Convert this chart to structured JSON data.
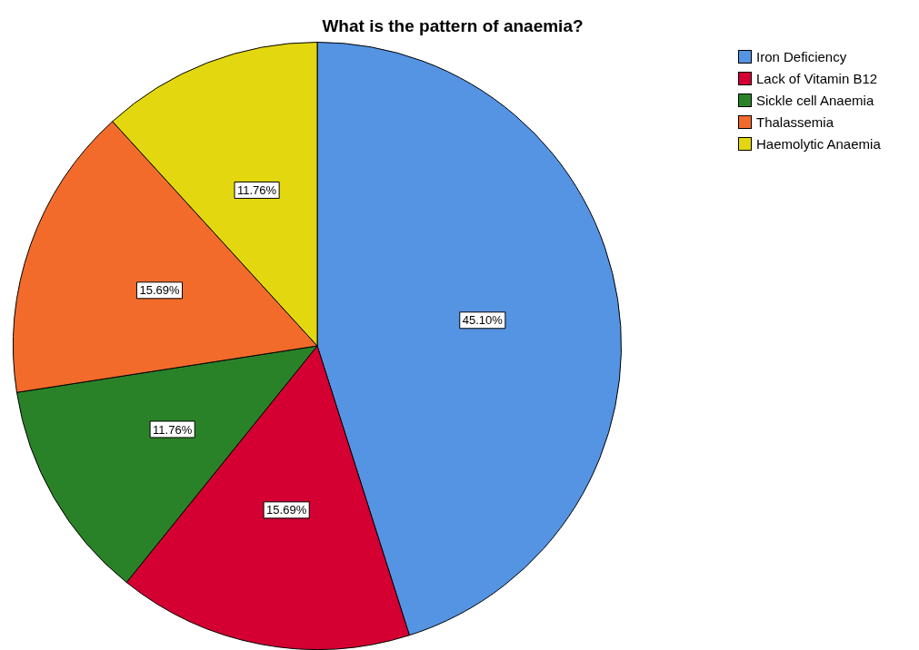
{
  "chart_data": {
    "type": "pie",
    "title": "What is the pattern of anaemia?",
    "categories": [
      "Iron Deficiency",
      "Lack of Vitamin B12",
      "Sickle cell Anaemia",
      "Thalassemia",
      "Haemolytic Anaemia"
    ],
    "values": [
      45.1,
      15.69,
      11.76,
      15.69,
      11.76
    ],
    "value_labels": [
      "45.10%",
      "15.69%",
      "11.76%",
      "15.69%",
      "11.76%"
    ],
    "colors": [
      "#5593e3",
      "#d40032",
      "#2a8228",
      "#f26b2b",
      "#e3d70f"
    ],
    "legend": "top right"
  }
}
